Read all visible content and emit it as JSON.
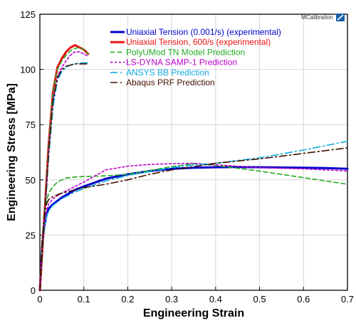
{
  "logo": {
    "text": "MCalibration"
  },
  "chart_data": {
    "type": "line",
    "xlabel": "Engineering Strain",
    "ylabel": "Engineering Stress [MPa]",
    "xlim": [
      0,
      0.7
    ],
    "ylim": [
      0,
      125
    ],
    "xticks": [
      0,
      0.1,
      0.2,
      0.3,
      0.4,
      0.5,
      0.6,
      0.7
    ],
    "xtick_labels": [
      "0",
      "0.1",
      "0.2",
      "0.3",
      "0.4",
      "0.5",
      "0.6",
      "0.7"
    ],
    "yticks": [
      0,
      25,
      50,
      75,
      100,
      125
    ],
    "ytick_labels": [
      "0",
      "25",
      "50",
      "75",
      "100",
      "125"
    ],
    "grid": true,
    "legend_position": "top-center",
    "series": [
      {
        "name": "Uniaxial Tension (0.001/s) (experimental)",
        "color": "#0000cc",
        "dash": "solid",
        "width": 3,
        "x": [
          0,
          0.003,
          0.006,
          0.01,
          0.015,
          0.02,
          0.03,
          0.05,
          0.08,
          0.1,
          0.15,
          0.2,
          0.25,
          0.3,
          0.35,
          0.4,
          0.45,
          0.5,
          0.55,
          0.6,
          0.65,
          0.7
        ],
        "y": [
          0,
          12,
          22,
          29,
          34,
          37,
          39,
          42,
          45.5,
          47,
          50.5,
          52.5,
          54,
          55,
          55.5,
          55.7,
          55.8,
          55.7,
          55.6,
          55.5,
          55.3,
          55
        ]
      },
      {
        "name": "Uniaxial Tension, 600/s (experimental)",
        "color": "#ee1111",
        "dash": "solid",
        "width": 3,
        "x": [
          0,
          0.01,
          0.02,
          0.03,
          0.04,
          0.05,
          0.06,
          0.07,
          0.08,
          0.09,
          0.1,
          0.11
        ],
        "y": [
          0,
          33,
          66,
          90,
          101,
          105,
          108,
          110,
          111,
          110,
          109,
          107
        ]
      },
      {
        "name": "PolyUMod TN Model Prediction",
        "color": "#22aa22",
        "dash": "6,4",
        "width": 1.6,
        "x": [
          0,
          0.005,
          0.01,
          0.015,
          0.02,
          0.03,
          0.04,
          0.05,
          0.06,
          0.08,
          0.1,
          0.15,
          0.2,
          0.3,
          0.35,
          0.4,
          0.5,
          0.6,
          0.7
        ],
        "y": [
          0,
          22,
          34,
          40,
          44,
          47,
          49,
          50,
          50.8,
          51.3,
          51.5,
          51.8,
          52.5,
          56,
          57.3,
          56.5,
          54,
          51,
          48
        ]
      },
      {
        "name": "PolyUMod TN Model Prediction (600/s)",
        "color": "#22aa22",
        "dash": "6,4",
        "width": 1.6,
        "x": [
          0,
          0.01,
          0.02,
          0.03,
          0.04,
          0.05,
          0.06,
          0.07,
          0.08,
          0.09,
          0.1,
          0.11
        ],
        "y": [
          0,
          34,
          66,
          90,
          100,
          104,
          106.5,
          108.5,
          109.5,
          110,
          109,
          107
        ]
      },
      {
        "name": "LS-DYNA SAMP-1 Prediction",
        "color": "#bb00cc",
        "dash": "3,3",
        "width": 1.6,
        "x": [
          0,
          0.005,
          0.01,
          0.015,
          0.02,
          0.03,
          0.05,
          0.08,
          0.1,
          0.15,
          0.2,
          0.25,
          0.3,
          0.35,
          0.4,
          0.5,
          0.6,
          0.7
        ],
        "y": [
          0,
          20,
          30,
          36,
          39,
          41.5,
          44,
          47,
          49,
          54.5,
          56.2,
          57,
          57.3,
          57.5,
          56.8,
          55.5,
          55,
          54
        ]
      },
      {
        "name": "LS-DYNA SAMP-1 Prediction (600/s)",
        "color": "#bb00cc",
        "dash": "3,3",
        "width": 1.6,
        "x": [
          0,
          0.01,
          0.02,
          0.03,
          0.04,
          0.05,
          0.06,
          0.07,
          0.08,
          0.09,
          0.1,
          0.11
        ],
        "y": [
          0,
          32,
          63,
          86,
          97,
          101,
          104,
          106.5,
          108,
          108,
          107,
          106
        ]
      },
      {
        "name": "ANSYS BB Prediction",
        "color": "#11aadd",
        "dash": "10,4,2,4",
        "width": 1.6,
        "x": [
          0,
          0.005,
          0.01,
          0.015,
          0.02,
          0.03,
          0.05,
          0.08,
          0.1,
          0.15,
          0.2,
          0.3,
          0.35,
          0.4,
          0.5,
          0.6,
          0.7
        ],
        "y": [
          0,
          18,
          28,
          33,
          36,
          38.5,
          41.5,
          44.5,
          46,
          49.5,
          52,
          55.5,
          56.8,
          57.5,
          60,
          63.5,
          67.5
        ]
      },
      {
        "name": "ANSYS BB Prediction (600/s)",
        "color": "#11aadd",
        "dash": "10,4,2,4",
        "width": 1.6,
        "x": [
          0,
          0.01,
          0.02,
          0.03,
          0.04,
          0.05,
          0.06,
          0.07,
          0.08,
          0.09,
          0.1,
          0.11
        ],
        "y": [
          0,
          30,
          60,
          83,
          95,
          99,
          101,
          102,
          102.5,
          103,
          103,
          103
        ]
      },
      {
        "name": "Abaqus PRF Prediction",
        "color": "#441100",
        "dash": "10,4,2,4",
        "width": 1.6,
        "x": [
          0,
          0.005,
          0.01,
          0.015,
          0.02,
          0.03,
          0.05,
          0.08,
          0.1,
          0.15,
          0.2,
          0.25,
          0.3,
          0.35,
          0.4,
          0.5,
          0.6,
          0.7
        ],
        "y": [
          0,
          22,
          34,
          39,
          41,
          42.5,
          44,
          45.5,
          46.5,
          48,
          50,
          52.5,
          54.5,
          56,
          57.5,
          59.5,
          62,
          64.5
        ]
      },
      {
        "name": "Abaqus PRF Prediction (600/s)",
        "color": "#441100",
        "dash": "10,4,2,4",
        "width": 1.6,
        "x": [
          0,
          0.01,
          0.02,
          0.03,
          0.04,
          0.05,
          0.06,
          0.07,
          0.08,
          0.09,
          0.1,
          0.11
        ],
        "y": [
          0,
          31,
          62,
          86,
          96,
          100,
          101.5,
          102,
          102.5,
          102.5,
          102.5,
          102.5
        ]
      }
    ],
    "legend": [
      {
        "label": "Uniaxial Tension (0.001/s) (experimental)",
        "color": "#0000cc",
        "dash": "solid",
        "width": 3,
        "text_color": "#0000cc"
      },
      {
        "label": "Uniaxial Tension, 600/s (experimental)",
        "color": "#ee1111",
        "dash": "solid",
        "width": 3,
        "text_color": "#ee1111"
      },
      {
        "label": "PolyUMod TN Model Prediction",
        "color": "#22aa22",
        "dash": "6,4",
        "width": 1.6,
        "text_color": "#22aa22"
      },
      {
        "label": "LS-DYNA SAMP-1 Prediction",
        "color": "#bb00cc",
        "dash": "3,3",
        "width": 1.6,
        "text_color": "#bb00cc"
      },
      {
        "label": "ANSYS BB Prediction",
        "color": "#11aadd",
        "dash": "10,4,2,4",
        "width": 1.6,
        "text_color": "#11aadd"
      },
      {
        "label": "Abaqus PRF Prediction",
        "color": "#441100",
        "dash": "10,4,2,4",
        "width": 1.6,
        "text_color": "#441100"
      }
    ]
  }
}
